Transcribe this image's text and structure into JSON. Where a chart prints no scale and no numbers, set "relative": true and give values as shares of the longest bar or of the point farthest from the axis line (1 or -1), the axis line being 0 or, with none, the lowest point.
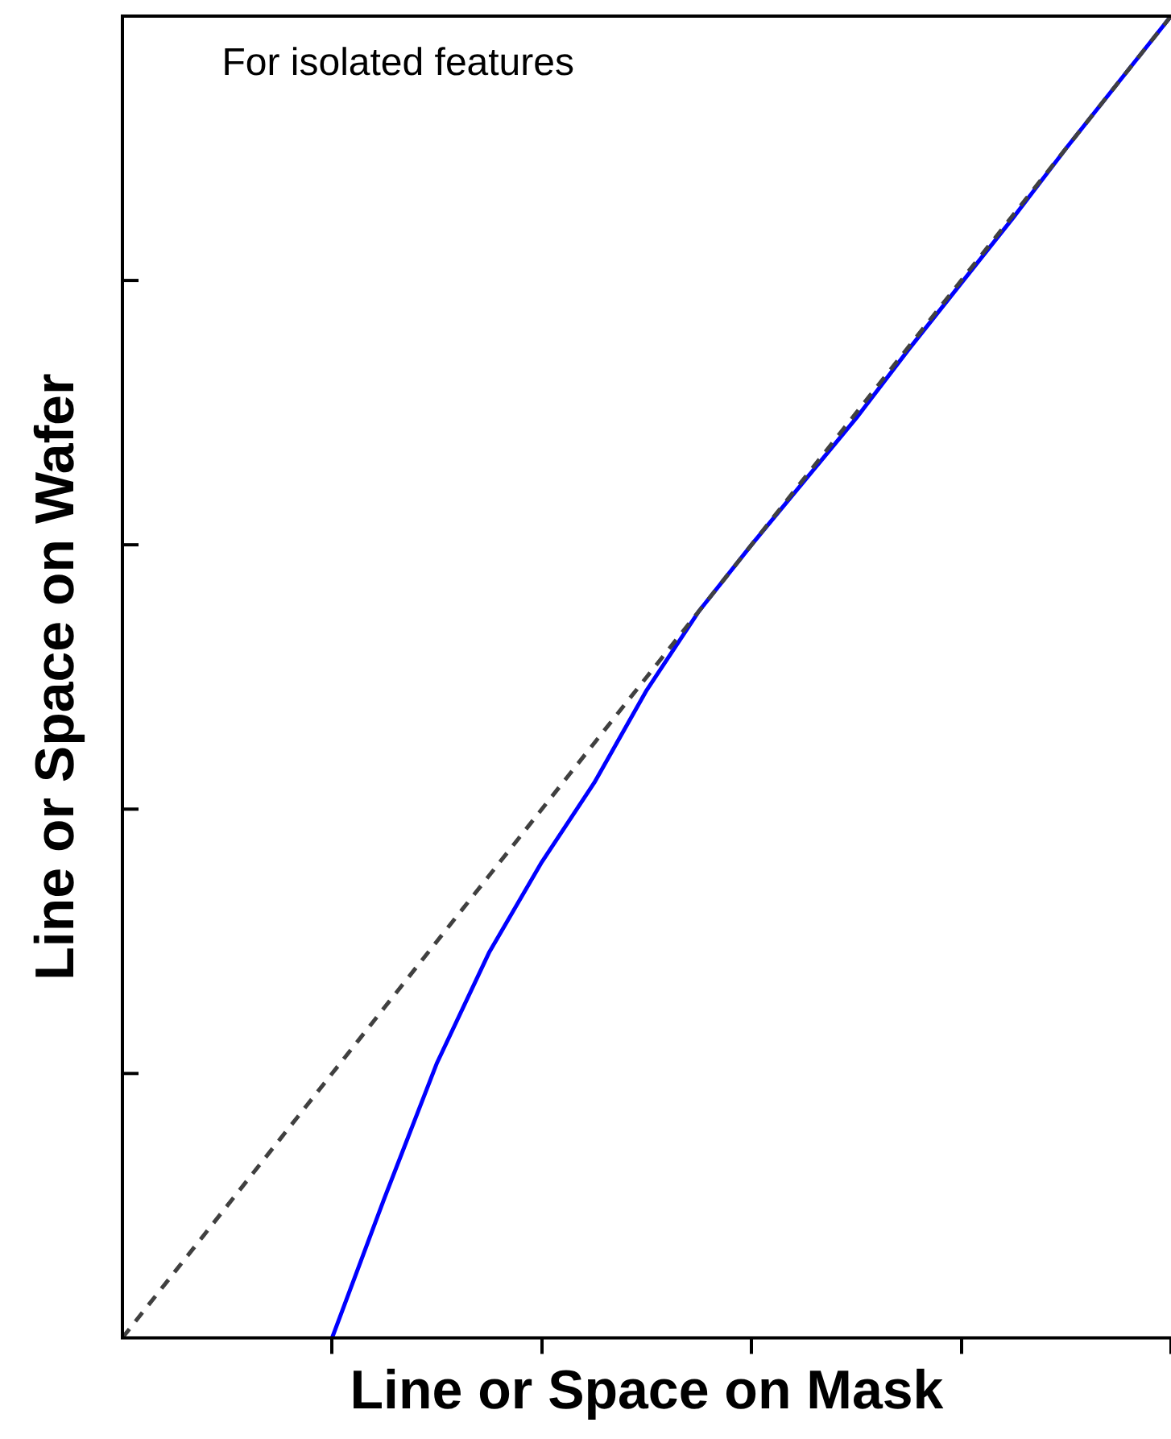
{
  "chart_data": {
    "type": "line",
    "relative": true,
    "xlabel": "Line or Space on Mask",
    "ylabel": "Line or Space on Wafer",
    "annotations": [
      "For isolated features"
    ],
    "legend": false,
    "grid": false,
    "marker": "none",
    "categories": [
      null,
      null,
      null,
      null,
      null,
      null,
      null,
      null,
      null,
      null,
      null,
      null,
      null,
      null,
      null,
      null,
      null,
      null,
      null,
      null,
      null
    ],
    "series": [
      {
        "color": "#404040",
        "line_style": "dashed",
        "values": [
          0,
          0.05,
          0.1,
          0.15,
          0.2,
          0.25,
          0.3,
          0.35,
          0.4,
          0.45,
          0.5,
          0.55,
          0.6,
          0.65,
          0.7,
          0.75,
          0.8,
          0.85,
          0.9,
          0.95,
          1.0
        ]
      },
      {
        "color": "#0000ff",
        "line_style": "solid",
        "values": [
          null,
          null,
          null,
          null,
          0,
          0.106,
          0.208,
          0.292,
          0.36,
          0.42,
          0.49,
          0.55,
          0.6,
          0.648,
          0.696,
          0.748,
          0.798,
          0.848,
          0.9,
          0.95,
          1.0
        ]
      }
    ]
  }
}
